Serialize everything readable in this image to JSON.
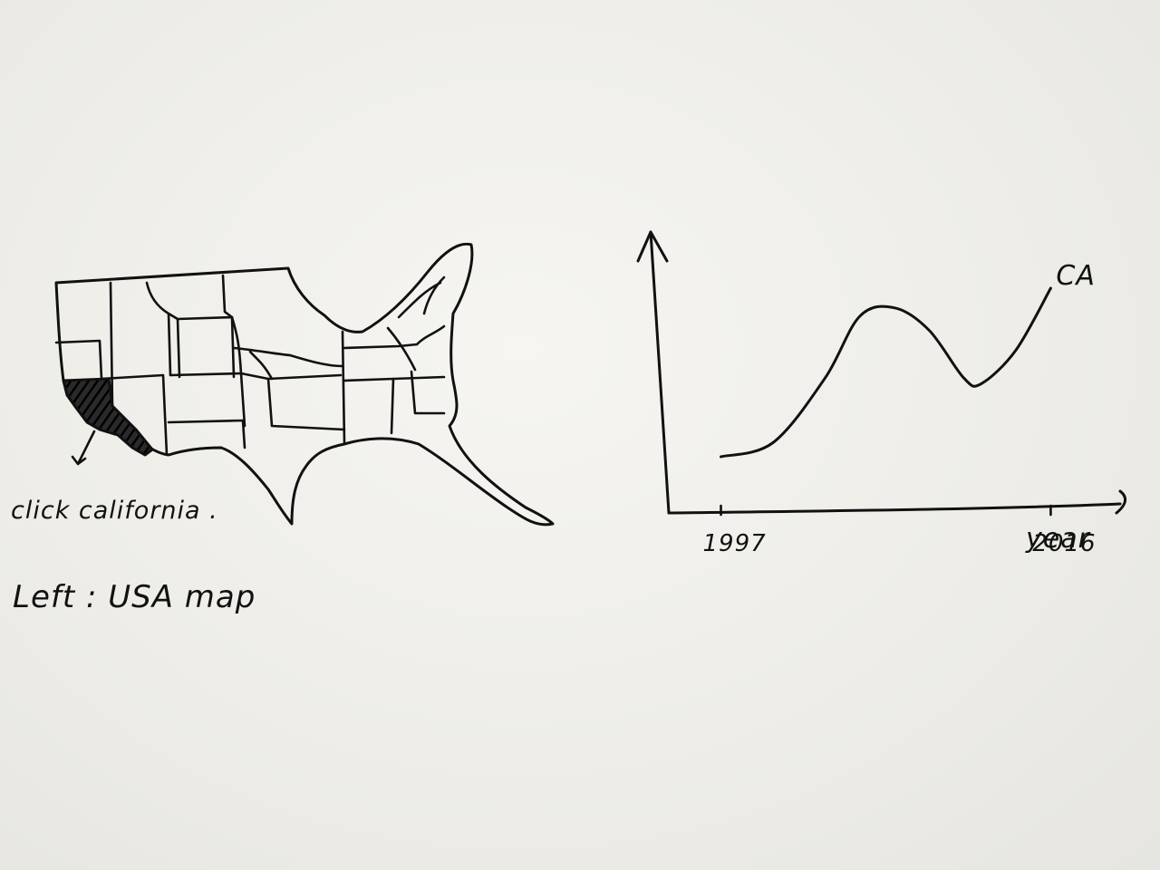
{
  "map": {
    "title": "Left : USA map",
    "callout": "click california .",
    "selected_state": "california",
    "fill_color": "#111111"
  },
  "chart_data": {
    "type": "line",
    "x": [
      1997,
      2000,
      2003,
      2005,
      2007,
      2009,
      2011,
      2012,
      2014,
      2016
    ],
    "series": [
      {
        "name": "CA",
        "values": [
          20,
          25,
          48,
          70,
          73,
          65,
          48,
          46,
          58,
          80
        ]
      }
    ],
    "x_tick_labels": [
      "1997",
      "2016"
    ],
    "xlabel": "year",
    "ylabel": "",
    "xlim": [
      1994,
      2020
    ],
    "ylim": [
      0,
      100
    ],
    "grid": false,
    "ink_color": "#111111"
  }
}
